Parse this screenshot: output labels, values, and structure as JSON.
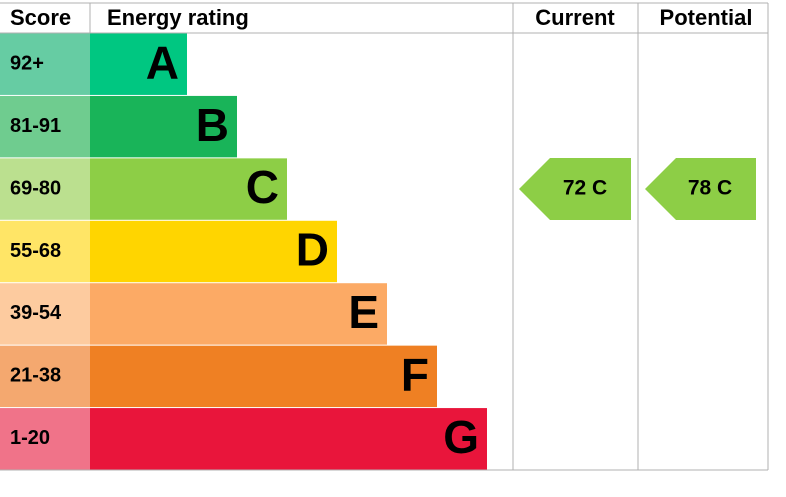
{
  "header": {
    "score": "Score",
    "rating": "Energy rating",
    "current": "Current",
    "potential": "Potential"
  },
  "bands": [
    {
      "score": "92+",
      "letter": "A",
      "color": "#00c781",
      "score_color": "#66cca3"
    },
    {
      "score": "81-91",
      "letter": "B",
      "color": "#19b459",
      "score_color": "#6fcc8f"
    },
    {
      "score": "69-80",
      "letter": "C",
      "color": "#8dce46",
      "score_color": "#bbe08f"
    },
    {
      "score": "55-68",
      "letter": "D",
      "color": "#ffd500",
      "score_color": "#ffe566"
    },
    {
      "score": "39-54",
      "letter": "E",
      "color": "#fcaa65",
      "score_color": "#fdcb9f"
    },
    {
      "score": "21-38",
      "letter": "F",
      "color": "#ef8023",
      "score_color": "#f4a86f"
    },
    {
      "score": "1-20",
      "letter": "G",
      "color": "#e9153b",
      "score_color": "#f07389"
    }
  ],
  "current": {
    "label": "72  C",
    "color": "#8dce46"
  },
  "potential": {
    "label": "78  C",
    "color": "#8dce46"
  }
}
